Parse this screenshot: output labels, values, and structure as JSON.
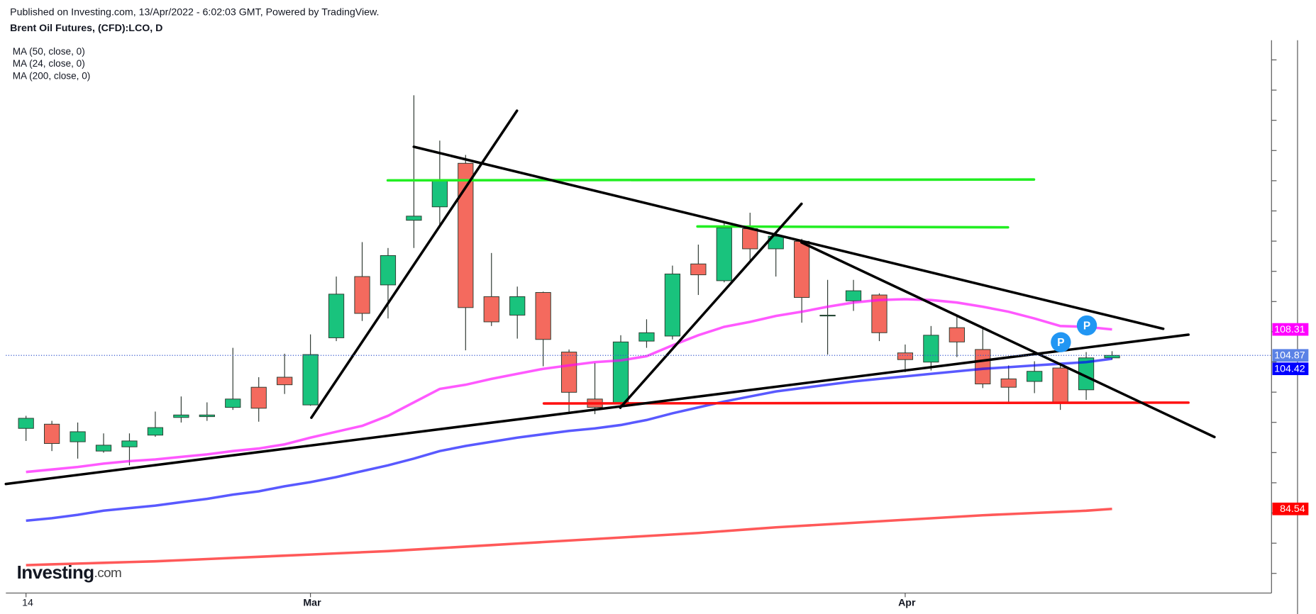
{
  "chart_data": {
    "type": "candlestick",
    "subtitle": "Published on Investing.com, 13/Apr/2022 - 6:02:03 GMT, Powered by TradingView.",
    "title": "Brent Oil Futures, (CFD):LCO, D",
    "logo": {
      "main": "Investing",
      "suffix": ".com"
    },
    "categories": [
      "14",
      null,
      null,
      null,
      null,
      null,
      null,
      null,
      null,
      null,
      null,
      "Mar",
      null,
      null,
      null,
      null,
      null,
      null,
      null,
      null,
      null,
      null,
      null,
      null,
      null,
      null,
      null,
      null,
      null,
      null,
      null,
      null,
      null,
      null,
      "Apr",
      null,
      null,
      null,
      null,
      null,
      null,
      null,
      null
    ],
    "open": [
      95.2,
      95.76,
      93.43,
      92.2,
      92.76,
      94.31,
      96.65,
      96.76,
      97.98,
      100.65,
      101.98,
      98.31,
      107.2,
      115.31,
      114.2,
      122.76,
      124.54,
      130.31,
      112.65,
      110.2,
      113.2,
      105.31,
      99.09,
      98.54,
      106.76,
      107.43,
      116.98,
      114.76,
      121.65,
      118.98,
      119.98,
      110.09,
      112.09,
      112.87,
      105.2,
      103.98,
      108.54,
      105.65,
      101.76,
      101.42,
      103.2,
      100.31,
      104.54
    ],
    "high": [
      96.87,
      96.2,
      95.98,
      94.54,
      94.54,
      97.43,
      99.43,
      98.65,
      105.87,
      101.98,
      105.09,
      107.65,
      115.31,
      119.87,
      119.09,
      139.31,
      133.31,
      131.42,
      118.43,
      113.98,
      113.31,
      105.65,
      103.87,
      107.54,
      109.65,
      116.76,
      119.54,
      122.43,
      123.76,
      121.09,
      120.31,
      114.87,
      114.87,
      113.09,
      106.31,
      108.76,
      110.09,
      108.54,
      103.54,
      104.09,
      103.54,
      105.31,
      105.42
    ],
    "low": [
      93.54,
      92.2,
      91.2,
      91.98,
      90.31,
      94.09,
      95.98,
      96.2,
      97.65,
      96.09,
      99.76,
      98.2,
      106.76,
      109.43,
      109.76,
      119.09,
      121.76,
      105.54,
      108.76,
      107.09,
      103.43,
      97.43,
      97.09,
      97.76,
      105.87,
      106.98,
      112.87,
      114.54,
      117.31,
      115.31,
      109.2,
      104.98,
      110.76,
      106.76,
      102.65,
      102.87,
      104.65,
      100.54,
      98.54,
      99.87,
      97.65,
      98.98,
      104.31
    ],
    "close": [
      96.54,
      93.2,
      94.76,
      92.98,
      93.54,
      95.31,
      96.98,
      96.98,
      99.09,
      97.87,
      100.98,
      104.98,
      112.98,
      110.43,
      118.09,
      123.31,
      127.98,
      111.2,
      109.31,
      112.65,
      106.98,
      99.98,
      97.98,
      106.65,
      107.87,
      115.65,
      115.54,
      121.76,
      118.98,
      120.65,
      112.54,
      110.2,
      113.43,
      107.87,
      104.31,
      107.54,
      106.65,
      101.09,
      100.65,
      102.76,
      98.54,
      104.54,
      104.87
    ],
    "up_color": "#19c37d",
    "down_color": "#f46a5e",
    "series": [
      {
        "name": "MA (50, close, 0)",
        "color": "#0000ff",
        "values": [
          82.98,
          83.31,
          83.76,
          84.31,
          84.65,
          84.98,
          85.43,
          85.87,
          86.43,
          86.87,
          87.54,
          88.09,
          88.76,
          89.54,
          90.31,
          91.2,
          92.2,
          92.87,
          93.43,
          93.98,
          94.43,
          94.87,
          95.2,
          95.65,
          96.31,
          97.2,
          97.98,
          98.76,
          99.43,
          100.09,
          100.54,
          100.98,
          101.42,
          101.76,
          102.09,
          102.43,
          102.76,
          103.09,
          103.31,
          103.54,
          103.76,
          103.98,
          104.42
        ]
      },
      {
        "name": "MA (24, close, 0)",
        "color": "#ff00ff",
        "values": [
          89.43,
          89.76,
          90.09,
          90.54,
          90.87,
          91.09,
          91.43,
          91.76,
          92.2,
          92.54,
          93.09,
          93.98,
          94.76,
          95.54,
          96.87,
          98.65,
          100.43,
          100.98,
          101.76,
          102.43,
          103.09,
          103.54,
          103.98,
          104.2,
          104.76,
          106.2,
          107.54,
          108.65,
          109.31,
          110.09,
          110.65,
          111.31,
          111.87,
          112.2,
          112.31,
          112.2,
          111.87,
          111.31,
          110.65,
          109.76,
          108.76,
          108.65,
          108.31
        ]
      },
      {
        "name": "MA (200, close, 0)",
        "color": "#ff0000",
        "values": [
          77.09,
          77.2,
          77.3,
          77.4,
          77.5,
          77.6,
          77.75,
          77.9,
          78.05,
          78.2,
          78.35,
          78.5,
          78.65,
          78.8,
          78.95,
          79.15,
          79.35,
          79.55,
          79.75,
          79.95,
          80.15,
          80.35,
          80.55,
          80.75,
          80.95,
          81.15,
          81.35,
          81.6,
          81.85,
          82.1,
          82.3,
          82.5,
          82.7,
          82.9,
          83.1,
          83.3,
          83.5,
          83.7,
          83.85,
          84.0,
          84.15,
          84.3,
          84.54
        ]
      }
    ],
    "annotations": [
      "P",
      "P"
    ],
    "ylim": [
      73.4,
      146.6
    ],
    "yticks": [
      76,
      80,
      84,
      88,
      92,
      96,
      100,
      104,
      108,
      112,
      116,
      120,
      124,
      128,
      132,
      136,
      140,
      144
    ]
  }
}
